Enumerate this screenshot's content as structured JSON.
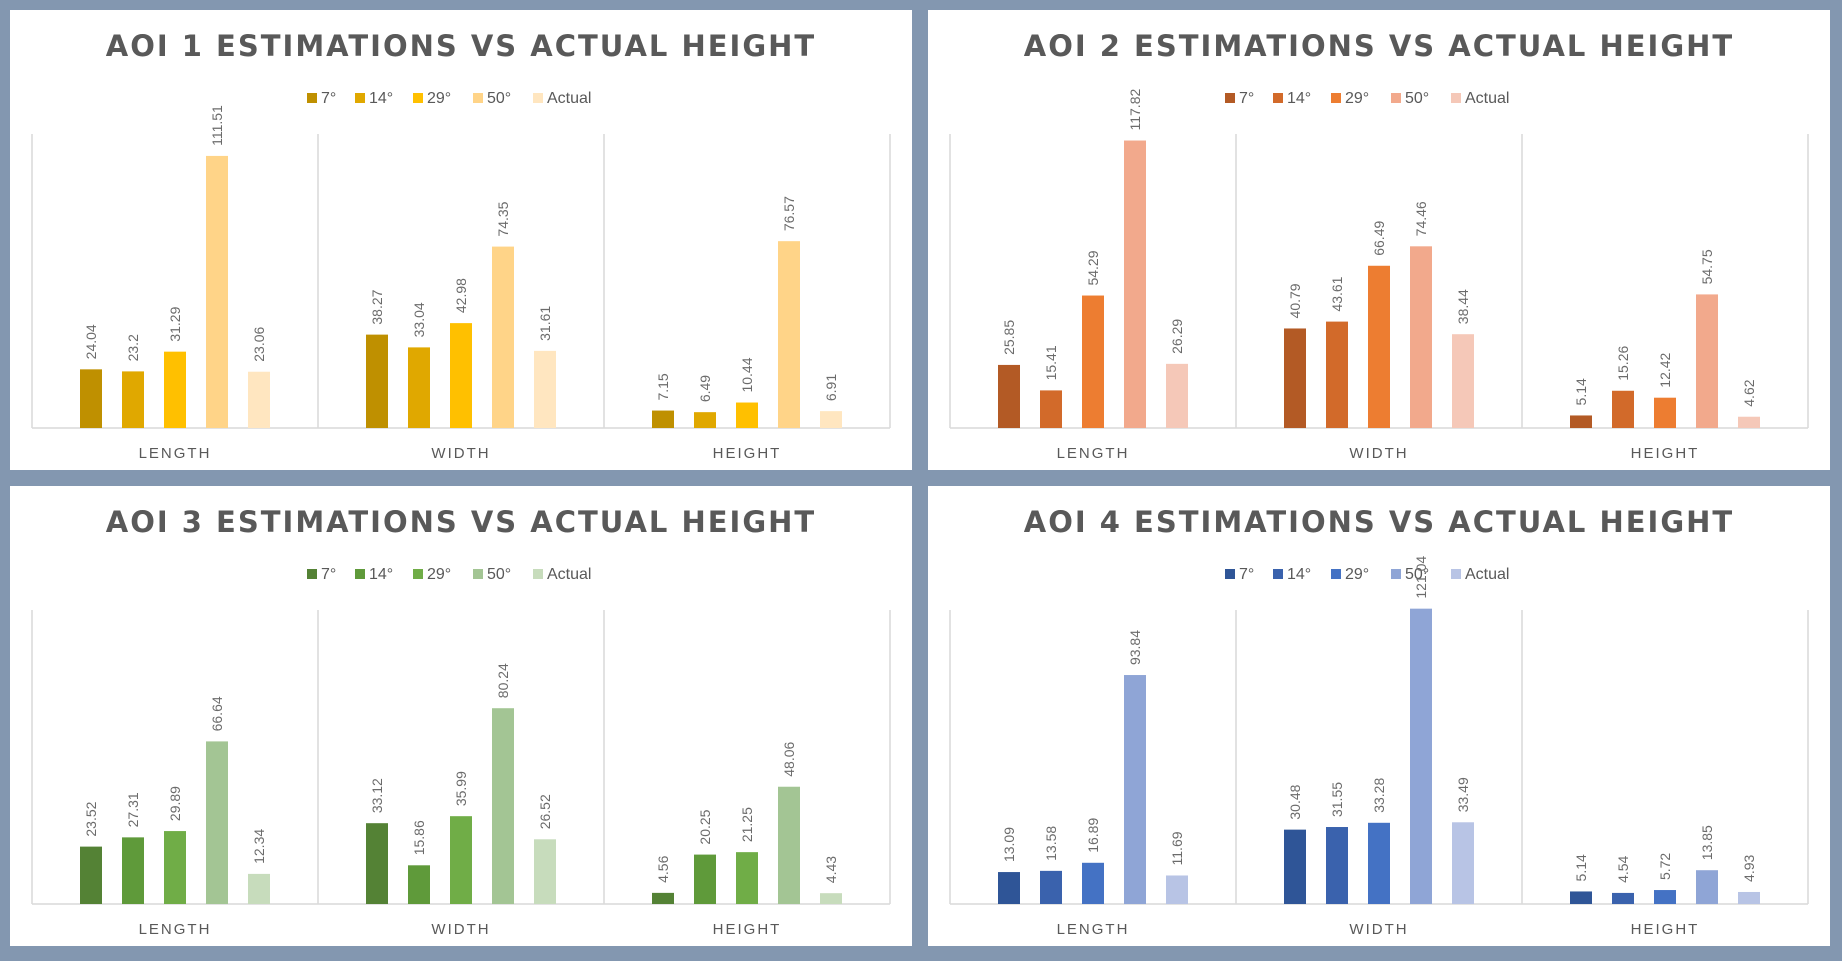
{
  "chart_data": [
    {
      "type": "bar",
      "title": "AOI 1 ESTIMATIONS VS ACTUAL HEIGHT",
      "categories": [
        "LENGTH",
        "WIDTH",
        "HEIGHT"
      ],
      "series": [
        {
          "name": "7°",
          "color": "#bf9000",
          "values": [
            24.04,
            38.27,
            7.15
          ]
        },
        {
          "name": "14°",
          "color": "#e0a800",
          "values": [
            23.2,
            33.04,
            6.49
          ]
        },
        {
          "name": "29°",
          "color": "#ffc000",
          "values": [
            31.29,
            42.98,
            10.44
          ]
        },
        {
          "name": "50°",
          "color": "#ffd488",
          "values": [
            111.51,
            74.35,
            76.57
          ]
        },
        {
          "name": "Actual",
          "color": "#ffe6c0",
          "values": [
            23.06,
            31.61,
            6.91
          ]
        }
      ],
      "grid": false,
      "legend_position": "top"
    },
    {
      "type": "bar",
      "title": "AOI 2 ESTIMATIONS VS ACTUAL HEIGHT",
      "categories": [
        "LENGTH",
        "WIDTH",
        "HEIGHT"
      ],
      "series": [
        {
          "name": "7°",
          "color": "#b35a25",
          "values": [
            25.85,
            40.79,
            5.14
          ]
        },
        {
          "name": "14°",
          "color": "#d26a2a",
          "values": [
            15.41,
            43.61,
            15.26
          ]
        },
        {
          "name": "29°",
          "color": "#ed7d31",
          "values": [
            54.29,
            66.49,
            12.42
          ]
        },
        {
          "name": "50°",
          "color": "#f2a98c",
          "values": [
            117.82,
            74.46,
            54.75
          ]
        },
        {
          "name": "Actual",
          "color": "#f5c8b8",
          "values": [
            26.29,
            38.44,
            4.62
          ]
        }
      ],
      "grid": false,
      "legend_position": "top"
    },
    {
      "type": "bar",
      "title": "AOI 3 ESTIMATIONS VS ACTUAL HEIGHT",
      "categories": [
        "LENGTH",
        "WIDTH",
        "HEIGHT"
      ],
      "series": [
        {
          "name": "7°",
          "color": "#548235",
          "values": [
            23.52,
            33.12,
            4.56
          ]
        },
        {
          "name": "14°",
          "color": "#5f9a3a",
          "values": [
            27.31,
            15.86,
            20.25
          ]
        },
        {
          "name": "29°",
          "color": "#70ad47",
          "values": [
            29.89,
            35.99,
            21.25
          ]
        },
        {
          "name": "50°",
          "color": "#a3c594",
          "values": [
            66.64,
            80.24,
            48.06
          ]
        },
        {
          "name": "Actual",
          "color": "#c7dcbc",
          "values": [
            12.34,
            26.52,
            4.43
          ]
        }
      ],
      "grid": false,
      "legend_position": "top"
    },
    {
      "type": "bar",
      "title": "AOI 4 ESTIMATIONS VS ACTUAL HEIGHT",
      "categories": [
        "LENGTH",
        "WIDTH",
        "HEIGHT"
      ],
      "series": [
        {
          "name": "7°",
          "color": "#2f5597",
          "values": [
            13.09,
            30.48,
            5.14
          ]
        },
        {
          "name": "14°",
          "color": "#3a62ad",
          "values": [
            13.58,
            31.55,
            4.54
          ]
        },
        {
          "name": "29°",
          "color": "#4472c4",
          "values": [
            16.89,
            33.28,
            5.72
          ]
        },
        {
          "name": "50°",
          "color": "#8fa5d6",
          "values": [
            93.84,
            121.04,
            13.85
          ]
        },
        {
          "name": "Actual",
          "color": "#b8c4e5",
          "values": [
            11.69,
            33.49,
            4.93
          ]
        }
      ],
      "grid": false,
      "legend_position": "top"
    }
  ]
}
